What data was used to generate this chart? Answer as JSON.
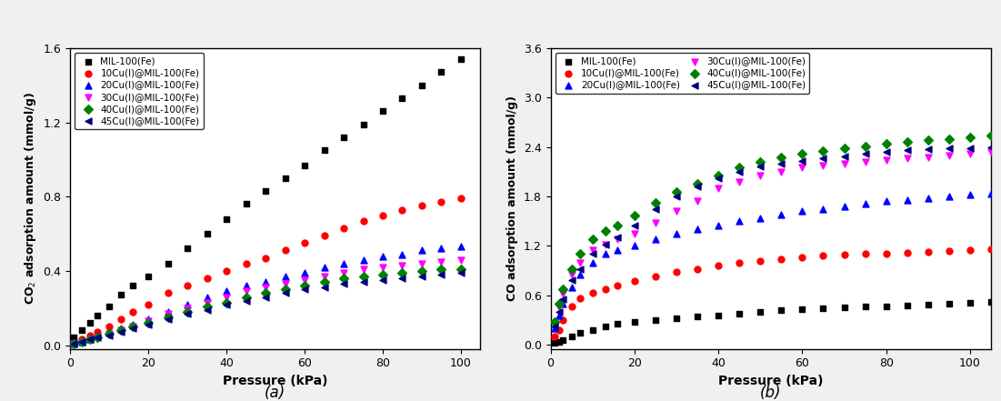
{
  "panel_a": {
    "title": "(a)",
    "xlabel": "Pressure (kPa)",
    "ylabel": "CO$_2$ adsorption amount (mmol/g)",
    "xlim": [
      0,
      105
    ],
    "ylim": [
      -0.02,
      1.6
    ],
    "yticks": [
      0.0,
      0.4,
      0.8,
      1.2,
      1.6
    ],
    "xticks": [
      0,
      20,
      40,
      60,
      80,
      100
    ],
    "series": [
      {
        "label": "MIL-100(Fe)",
        "color": "#000000",
        "marker": "s",
        "x": [
          1,
          3,
          5,
          7,
          10,
          13,
          16,
          20,
          25,
          30,
          35,
          40,
          45,
          50,
          55,
          60,
          65,
          70,
          75,
          80,
          85,
          90,
          95,
          100
        ],
        "y": [
          0.04,
          0.08,
          0.12,
          0.16,
          0.21,
          0.27,
          0.32,
          0.37,
          0.44,
          0.52,
          0.6,
          0.68,
          0.76,
          0.83,
          0.9,
          0.97,
          1.05,
          1.12,
          1.19,
          1.26,
          1.33,
          1.4,
          1.47,
          1.54
        ]
      },
      {
        "label": "10Cu(I)@MIL-100(Fe)",
        "color": "#ff0000",
        "marker": "o",
        "x": [
          1,
          3,
          5,
          7,
          10,
          13,
          16,
          20,
          25,
          30,
          35,
          40,
          45,
          50,
          55,
          60,
          65,
          70,
          75,
          80,
          85,
          90,
          95,
          100
        ],
        "y": [
          0.01,
          0.03,
          0.05,
          0.07,
          0.1,
          0.14,
          0.18,
          0.22,
          0.28,
          0.32,
          0.36,
          0.4,
          0.44,
          0.47,
          0.51,
          0.55,
          0.59,
          0.63,
          0.67,
          0.7,
          0.73,
          0.75,
          0.77,
          0.79
        ]
      },
      {
        "label": "20Cu(I)@MIL-100(Fe)",
        "color": "#0000ff",
        "marker": "^",
        "x": [
          1,
          3,
          5,
          7,
          10,
          13,
          16,
          20,
          25,
          30,
          35,
          40,
          45,
          50,
          55,
          60,
          65,
          70,
          75,
          80,
          85,
          90,
          95,
          100
        ],
        "y": [
          0.01,
          0.02,
          0.03,
          0.05,
          0.07,
          0.09,
          0.11,
          0.14,
          0.18,
          0.22,
          0.26,
          0.29,
          0.32,
          0.34,
          0.37,
          0.39,
          0.42,
          0.44,
          0.46,
          0.48,
          0.49,
          0.51,
          0.52,
          0.53
        ]
      },
      {
        "label": "30Cu(I)@MIL-100(Fe)",
        "color": "#ff00ff",
        "marker": "v",
        "x": [
          1,
          3,
          5,
          7,
          10,
          13,
          16,
          20,
          25,
          30,
          35,
          40,
          45,
          50,
          55,
          60,
          65,
          70,
          75,
          80,
          85,
          90,
          95,
          100
        ],
        "y": [
          0.01,
          0.02,
          0.03,
          0.04,
          0.06,
          0.08,
          0.1,
          0.13,
          0.17,
          0.2,
          0.23,
          0.26,
          0.29,
          0.31,
          0.33,
          0.35,
          0.37,
          0.39,
          0.41,
          0.42,
          0.43,
          0.44,
          0.45,
          0.46
        ]
      },
      {
        "label": "40Cu(I)@MIL-100(Fe)",
        "color": "#008000",
        "marker": "D",
        "x": [
          1,
          3,
          5,
          7,
          10,
          13,
          16,
          20,
          25,
          30,
          35,
          40,
          45,
          50,
          55,
          60,
          65,
          70,
          75,
          80,
          85,
          90,
          95,
          100
        ],
        "y": [
          0.01,
          0.02,
          0.03,
          0.04,
          0.06,
          0.08,
          0.1,
          0.12,
          0.15,
          0.18,
          0.21,
          0.23,
          0.26,
          0.28,
          0.3,
          0.32,
          0.34,
          0.36,
          0.37,
          0.38,
          0.39,
          0.4,
          0.41,
          0.41
        ]
      },
      {
        "label": "45Cu(I)@MIL-100(Fe)",
        "color": "#000080",
        "marker": "<",
        "x": [
          1,
          3,
          5,
          7,
          10,
          13,
          16,
          20,
          25,
          30,
          35,
          40,
          45,
          50,
          55,
          60,
          65,
          70,
          75,
          80,
          85,
          90,
          95,
          100
        ],
        "y": [
          0.01,
          0.02,
          0.03,
          0.04,
          0.05,
          0.07,
          0.09,
          0.11,
          0.14,
          0.17,
          0.19,
          0.22,
          0.24,
          0.26,
          0.28,
          0.3,
          0.31,
          0.33,
          0.34,
          0.35,
          0.36,
          0.37,
          0.38,
          0.39
        ]
      }
    ]
  },
  "panel_b": {
    "title": "(b)",
    "xlabel": "Pressure (kPa)",
    "ylabel": "CO adsorption amount (mmol/g)",
    "xlim": [
      0,
      105
    ],
    "ylim": [
      -0.05,
      3.6
    ],
    "yticks": [
      0.0,
      0.6,
      1.2,
      1.8,
      2.4,
      3.0,
      3.6
    ],
    "xticks": [
      0,
      20,
      40,
      60,
      80,
      100
    ],
    "series": [
      {
        "label": "MIL-100(Fe)",
        "color": "#000000",
        "marker": "s",
        "x": [
          1,
          2,
          3,
          5,
          7,
          10,
          13,
          16,
          20,
          25,
          30,
          35,
          40,
          45,
          50,
          55,
          60,
          65,
          70,
          75,
          80,
          85,
          90,
          95,
          100,
          105
        ],
        "y": [
          0.02,
          0.04,
          0.06,
          0.1,
          0.14,
          0.18,
          0.22,
          0.26,
          0.28,
          0.3,
          0.32,
          0.34,
          0.36,
          0.38,
          0.4,
          0.42,
          0.43,
          0.44,
          0.45,
          0.46,
          0.47,
          0.48,
          0.49,
          0.5,
          0.51,
          0.52
        ]
      },
      {
        "label": "10Cu(I)@MIL-100(Fe)",
        "color": "#ff0000",
        "marker": "o",
        "x": [
          1,
          2,
          3,
          5,
          7,
          10,
          13,
          16,
          20,
          25,
          30,
          35,
          40,
          45,
          50,
          55,
          60,
          65,
          70,
          75,
          80,
          85,
          90,
          95,
          100,
          105
        ],
        "y": [
          0.1,
          0.18,
          0.3,
          0.47,
          0.56,
          0.63,
          0.68,
          0.72,
          0.77,
          0.83,
          0.88,
          0.92,
          0.96,
          0.99,
          1.02,
          1.04,
          1.06,
          1.08,
          1.09,
          1.1,
          1.11,
          1.12,
          1.13,
          1.14,
          1.15,
          1.16
        ]
      },
      {
        "label": "20Cu(I)@MIL-100(Fe)",
        "color": "#0000ff",
        "marker": "^",
        "x": [
          1,
          2,
          3,
          5,
          7,
          10,
          13,
          16,
          20,
          25,
          30,
          35,
          40,
          45,
          50,
          55,
          60,
          65,
          70,
          75,
          80,
          85,
          90,
          95,
          100,
          105
        ],
        "y": [
          0.2,
          0.35,
          0.5,
          0.7,
          0.85,
          1.0,
          1.1,
          1.15,
          1.2,
          1.28,
          1.35,
          1.4,
          1.45,
          1.5,
          1.54,
          1.58,
          1.62,
          1.65,
          1.68,
          1.71,
          1.74,
          1.76,
          1.78,
          1.8,
          1.82,
          1.83
        ]
      },
      {
        "label": "30Cu(I)@MIL-100(Fe)",
        "color": "#ff00ff",
        "marker": "v",
        "x": [
          1,
          2,
          3,
          5,
          7,
          10,
          13,
          16,
          20,
          25,
          30,
          35,
          40,
          45,
          50,
          55,
          60,
          65,
          70,
          75,
          80,
          85,
          90,
          95,
          100,
          105
        ],
        "y": [
          0.25,
          0.45,
          0.62,
          0.85,
          1.0,
          1.15,
          1.22,
          1.28,
          1.35,
          1.48,
          1.62,
          1.75,
          1.9,
          1.98,
          2.05,
          2.1,
          2.15,
          2.18,
          2.2,
          2.22,
          2.24,
          2.26,
          2.28,
          2.3,
          2.32,
          2.34
        ]
      },
      {
        "label": "40Cu(I)@MIL-100(Fe)",
        "color": "#008000",
        "marker": "D",
        "x": [
          1,
          2,
          3,
          5,
          7,
          10,
          13,
          16,
          20,
          25,
          30,
          35,
          40,
          45,
          50,
          55,
          60,
          65,
          70,
          75,
          80,
          85,
          90,
          95,
          100,
          105
        ],
        "y": [
          0.28,
          0.5,
          0.68,
          0.92,
          1.1,
          1.28,
          1.38,
          1.45,
          1.57,
          1.72,
          1.85,
          1.95,
          2.05,
          2.15,
          2.22,
          2.28,
          2.32,
          2.35,
          2.38,
          2.41,
          2.44,
          2.46,
          2.48,
          2.5,
          2.52,
          2.54
        ]
      },
      {
        "label": "45Cu(I)@MIL-100(Fe)",
        "color": "#000080",
        "marker": "<",
        "x": [
          1,
          2,
          3,
          5,
          7,
          10,
          13,
          16,
          20,
          25,
          30,
          35,
          40,
          45,
          50,
          55,
          60,
          65,
          70,
          75,
          80,
          85,
          90,
          95,
          100,
          105
        ],
        "y": [
          0.22,
          0.4,
          0.55,
          0.78,
          0.92,
          1.1,
          1.22,
          1.3,
          1.45,
          1.65,
          1.8,
          1.92,
          2.02,
          2.1,
          2.16,
          2.2,
          2.23,
          2.26,
          2.29,
          2.32,
          2.34,
          2.36,
          2.37,
          2.38,
          2.39,
          2.4
        ]
      }
    ]
  },
  "background_color": "#f0f0f0",
  "panel_bg": "#ffffff"
}
